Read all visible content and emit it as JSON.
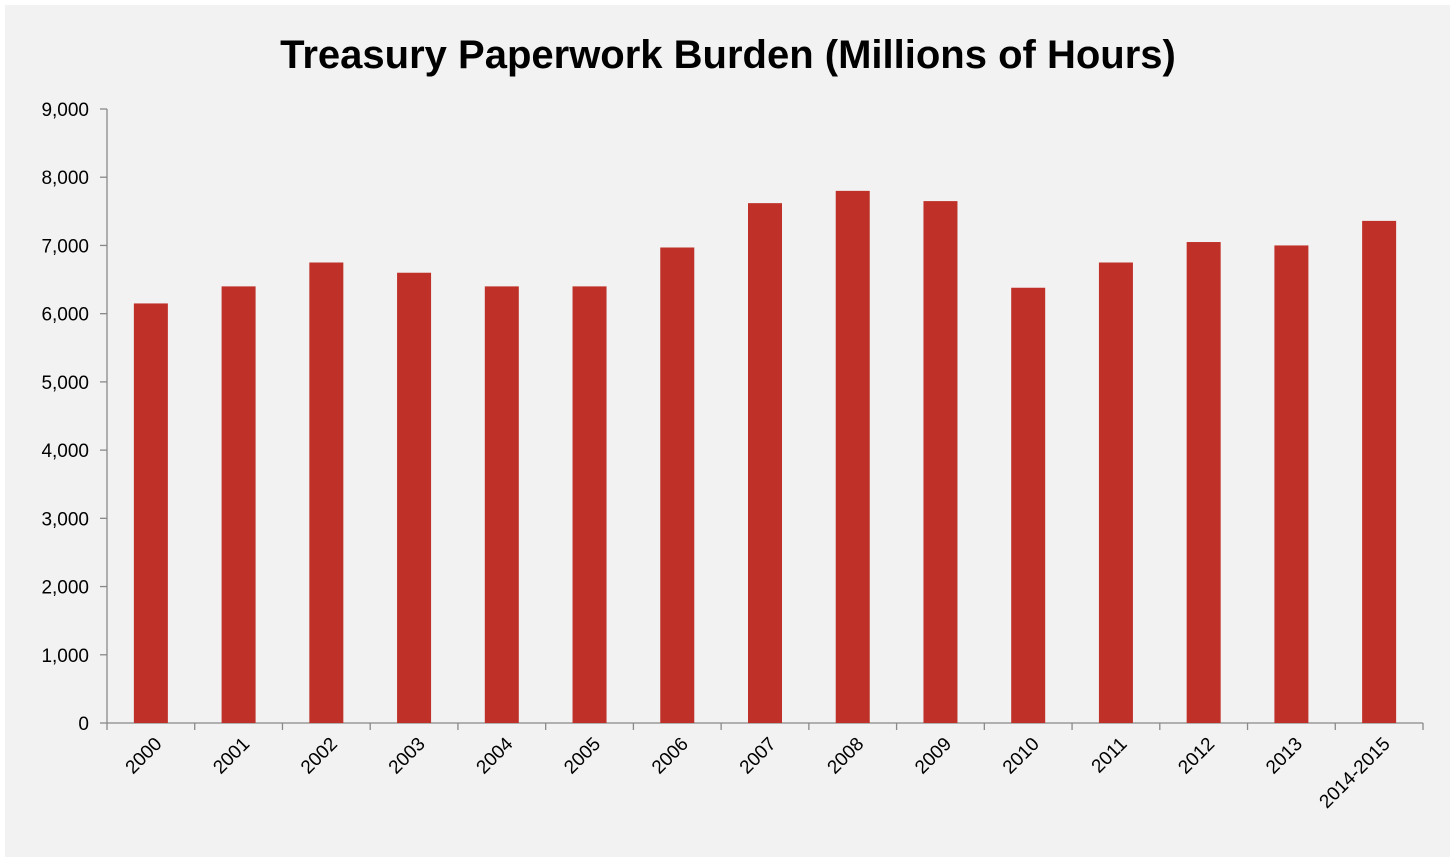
{
  "chart_data": {
    "type": "bar",
    "title": "Treasury Paperwork Burden (Millions of Hours)",
    "xlabel": "",
    "ylabel": "",
    "categories": [
      "2000",
      "2001",
      "2002",
      "2003",
      "2004",
      "2005",
      "2006",
      "2007",
      "2008",
      "2009",
      "2010",
      "2011",
      "2012",
      "2013",
      "2014-2015"
    ],
    "values": [
      6150,
      6400,
      6750,
      6600,
      6400,
      6400,
      6970,
      7620,
      7800,
      7650,
      6380,
      6750,
      7050,
      7000,
      7360
    ],
    "ylim": [
      0,
      9000
    ],
    "yticks": [
      0,
      1000,
      2000,
      3000,
      4000,
      5000,
      6000,
      7000,
      8000,
      9000
    ],
    "ytick_labels": [
      "0",
      "1,000",
      "2,000",
      "3,000",
      "4,000",
      "5,000",
      "6,000",
      "7,000",
      "8,000",
      "9,000"
    ],
    "grid": false,
    "legend": "none",
    "bar_color": "#bf3128",
    "background_color": "#f2f2f2"
  }
}
